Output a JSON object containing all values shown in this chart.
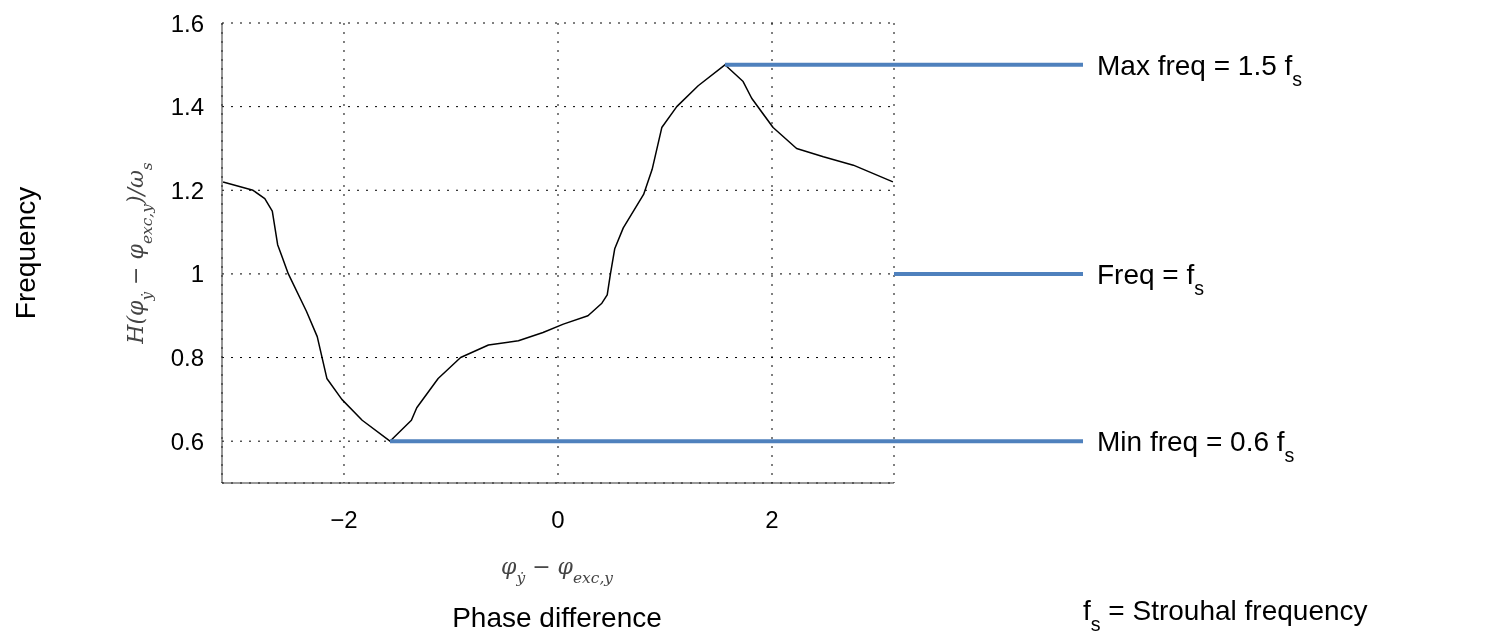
{
  "chart_data": {
    "type": "line",
    "xlabel": "φ$_{ẏ}$ − φ$_{exc,y}$",
    "ylabel": "H(φ$_{ẏ}$ − φ$_{exc,y}$)/ω$_{s}$",
    "x": [
      -3.13,
      -2.85,
      -2.74,
      -2.67,
      -2.62,
      -2.52,
      -2.35,
      -2.25,
      -2.16,
      -2.02,
      -1.83,
      -1.57,
      -1.37,
      -1.32,
      -1.12,
      -0.91,
      -0.65,
      -0.37,
      -0.14,
      0.05,
      0.28,
      0.41,
      0.46,
      0.49,
      0.53,
      0.61,
      0.8,
      0.88,
      0.97,
      1.11,
      1.31,
      1.56,
      1.73,
      1.81,
      2.01,
      2.23,
      2.48,
      2.76,
      3.13
    ],
    "values": [
      1.22,
      1.2,
      1.18,
      1.15,
      1.07,
      1.0,
      0.91,
      0.85,
      0.75,
      0.7,
      0.65,
      0.6,
      0.65,
      0.68,
      0.75,
      0.8,
      0.83,
      0.84,
      0.86,
      0.88,
      0.9,
      0.93,
      0.95,
      1.0,
      1.06,
      1.11,
      1.19,
      1.25,
      1.35,
      1.4,
      1.45,
      1.5,
      1.46,
      1.42,
      1.35,
      1.3,
      1.28,
      1.26,
      1.22
    ],
    "color": "#000000",
    "xlim": [
      -3.14,
      3.14
    ],
    "xticks": [
      {
        "value": -2,
        "label": "−2"
      },
      0,
      2
    ],
    "ylim": [
      0.5,
      1.6
    ],
    "yticks": [
      0.6,
      0.8,
      1,
      1.2,
      1.4,
      1.6
    ],
    "grid": true,
    "ref_lines": [
      {
        "axis": "y",
        "value": 1.5,
        "label": "Max freq = 1.5 f$_{s}$",
        "color": "#4f81bd"
      },
      {
        "axis": "y",
        "value": 1,
        "label": "Freq = f$_{s}$",
        "color": "#4f81bd"
      },
      {
        "axis": "y",
        "value": 0.6,
        "label": "Min freq = 0.6 f$_{s}$",
        "color": "#4f81bd"
      }
    ],
    "annotations": [
      "Frequency",
      "Phase difference",
      "f$_{s}$ = Strouhal frequency"
    ]
  }
}
